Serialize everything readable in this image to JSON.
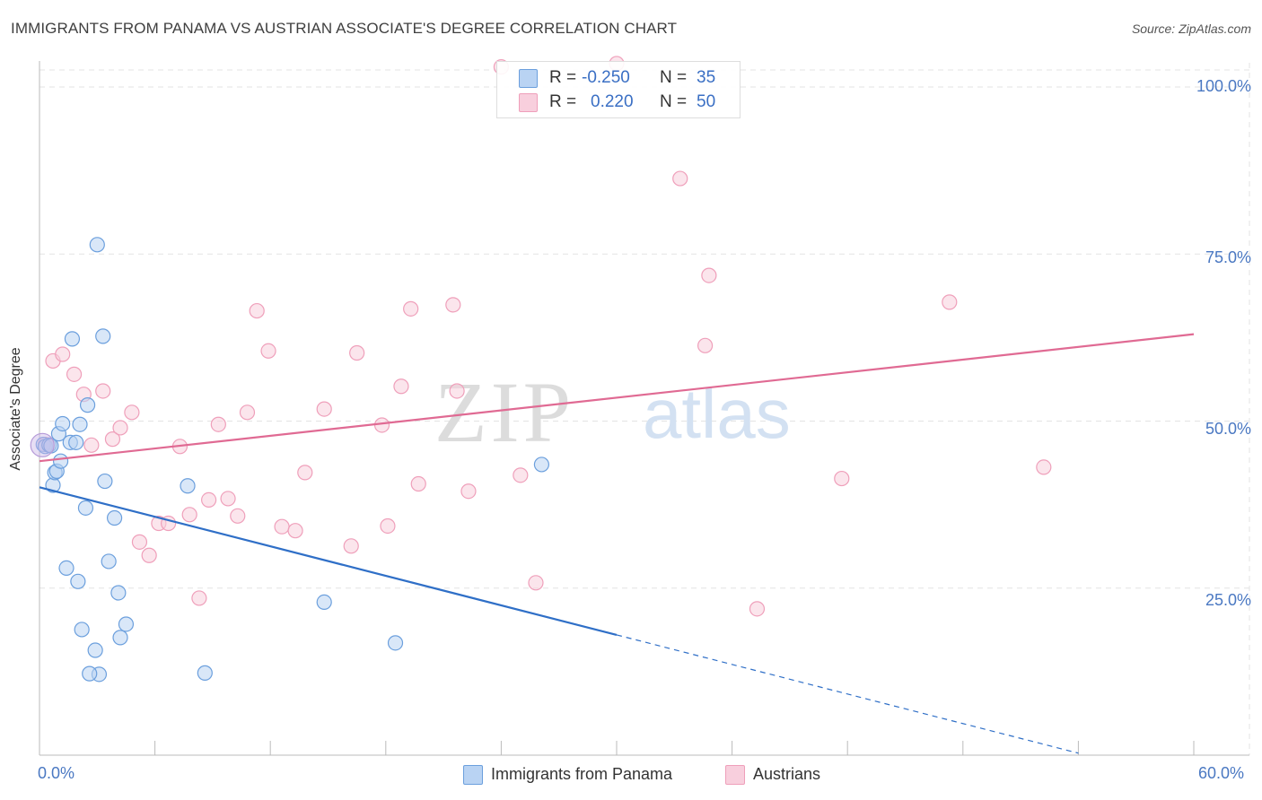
{
  "header": {
    "title": "IMMIGRANTS FROM PANAMA VS AUSTRIAN ASSOCIATE'S DEGREE CORRELATION CHART",
    "source": "Source: ZipAtlas.com"
  },
  "watermark": {
    "zip": "ZIP",
    "atlas": "atlas"
  },
  "legend": {
    "rows": [
      {
        "r_label": "R =",
        "r_value": "-0.250",
        "n_label": "N =",
        "n_value": "35"
      },
      {
        "r_label": "R =",
        "r_value": "0.220",
        "n_label": "N =",
        "n_value": "50"
      }
    ]
  },
  "chart_data": {
    "type": "scatter",
    "title": "IMMIGRANTS FROM PANAMA VS AUSTRIAN ASSOCIATE'S DEGREE CORRELATION CHART",
    "ylabel": "Associate's Degree",
    "xlim": [
      0,
      60
    ],
    "ylim": [
      0,
      100
    ],
    "x_tick_labels": [
      "0.0%",
      "60.0%"
    ],
    "y_ticks": [
      25,
      50,
      75,
      100
    ],
    "y_tick_labels": [
      "25.0%",
      "50.0%",
      "75.0%",
      "100.0%"
    ],
    "grid": true,
    "legend_position": "top-center",
    "series": [
      {
        "name": "Immigrants from Panama",
        "color": "#6b9fdd",
        "fill": "#b9d3f3",
        "trend_color": "#2f6fc7",
        "R": -0.25,
        "N": 35,
        "trend": {
          "x": [
            0,
            30
          ],
          "y": [
            40.1,
            18.0
          ]
        },
        "trend_dashed": {
          "x": [
            30,
            54
          ],
          "y": [
            18.0,
            0.3
          ]
        },
        "points": [
          [
            0.2,
            46.5
          ],
          [
            0.3,
            46.2
          ],
          [
            0.5,
            46.4
          ],
          [
            0.7,
            40.4
          ],
          [
            0.8,
            42.3
          ],
          [
            0.9,
            42.5
          ],
          [
            1.0,
            48.1
          ],
          [
            1.1,
            44.0
          ],
          [
            1.2,
            49.6
          ],
          [
            1.6,
            46.8
          ],
          [
            1.7,
            62.3
          ],
          [
            1.9,
            46.8
          ],
          [
            2.0,
            26.0
          ],
          [
            2.1,
            49.5
          ],
          [
            2.2,
            18.8
          ],
          [
            2.4,
            37.0
          ],
          [
            2.5,
            52.4
          ],
          [
            1.4,
            28.0
          ],
          [
            2.9,
            15.7
          ],
          [
            3.0,
            76.4
          ],
          [
            3.1,
            12.1
          ],
          [
            3.3,
            62.7
          ],
          [
            3.4,
            41.0
          ],
          [
            3.6,
            29.0
          ],
          [
            3.9,
            35.5
          ],
          [
            4.1,
            24.3
          ],
          [
            4.2,
            17.6
          ],
          [
            4.5,
            19.6
          ],
          [
            2.6,
            12.2
          ],
          [
            7.7,
            40.3
          ],
          [
            8.6,
            12.3
          ],
          [
            14.8,
            22.9
          ],
          [
            18.5,
            16.8
          ],
          [
            26.1,
            43.5
          ],
          [
            0.6,
            46.3
          ]
        ]
      },
      {
        "name": "Austrians",
        "color": "#ef9fba",
        "fill": "#f8cfdd",
        "trend_color": "#e06a93",
        "R": 0.22,
        "N": 50,
        "trend": {
          "x": [
            0,
            60
          ],
          "y": [
            44.0,
            63.0
          ]
        },
        "points": [
          [
            0.3,
            46.5
          ],
          [
            0.5,
            46.4
          ],
          [
            0.7,
            59.0
          ],
          [
            1.2,
            60.0
          ],
          [
            1.8,
            57.0
          ],
          [
            2.3,
            54.0
          ],
          [
            2.7,
            46.4
          ],
          [
            3.3,
            54.5
          ],
          [
            3.8,
            47.3
          ],
          [
            4.2,
            49.0
          ],
          [
            4.8,
            51.3
          ],
          [
            5.2,
            31.9
          ],
          [
            5.7,
            29.9
          ],
          [
            6.2,
            34.7
          ],
          [
            6.7,
            34.7
          ],
          [
            7.3,
            46.2
          ],
          [
            7.8,
            36.0
          ],
          [
            8.3,
            23.5
          ],
          [
            8.8,
            38.2
          ],
          [
            9.3,
            49.5
          ],
          [
            9.8,
            38.4
          ],
          [
            10.3,
            35.8
          ],
          [
            10.8,
            51.3
          ],
          [
            11.3,
            66.5
          ],
          [
            11.9,
            60.5
          ],
          [
            12.6,
            34.2
          ],
          [
            13.3,
            33.6
          ],
          [
            13.8,
            42.3
          ],
          [
            14.8,
            51.8
          ],
          [
            16.2,
            31.3
          ],
          [
            16.5,
            60.2
          ],
          [
            17.8,
            49.4
          ],
          [
            18.1,
            34.3
          ],
          [
            18.8,
            55.2
          ],
          [
            19.3,
            66.8
          ],
          [
            19.7,
            40.6
          ],
          [
            21.5,
            67.4
          ],
          [
            21.7,
            54.5
          ],
          [
            22.3,
            39.5
          ],
          [
            25.0,
            41.9
          ],
          [
            25.8,
            25.8
          ],
          [
            30.0,
            103.5
          ],
          [
            33.3,
            86.3
          ],
          [
            34.6,
            61.3
          ],
          [
            34.8,
            71.8
          ],
          [
            37.3,
            21.9
          ],
          [
            41.7,
            41.4
          ],
          [
            47.3,
            67.8
          ],
          [
            52.2,
            43.1
          ],
          [
            24.0,
            103.0
          ]
        ]
      }
    ]
  }
}
